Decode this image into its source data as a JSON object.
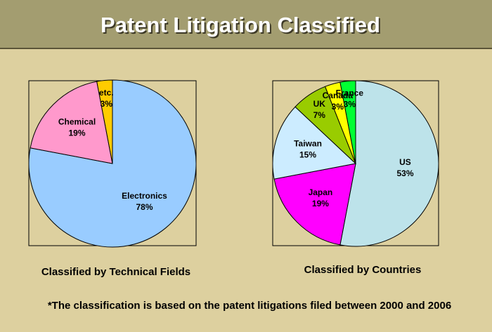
{
  "title": "Patent Litigation Classified",
  "chart_data": [
    {
      "type": "pie",
      "title": "Classified by Technical Fields",
      "categories": [
        "Electronics",
        "Chemical",
        "etc."
      ],
      "values": [
        78,
        19,
        3
      ],
      "value_labels": [
        "78%",
        "19%",
        "3%"
      ],
      "colors": [
        "#99ccff",
        "#ff99cc",
        "#ffcc00"
      ]
    },
    {
      "type": "pie",
      "title": "Classified by Countries",
      "categories": [
        "US",
        "Japan",
        "Taiwan",
        "UK",
        "Canada",
        "France"
      ],
      "values": [
        53,
        19,
        15,
        7,
        3,
        3
      ],
      "value_labels": [
        "53%",
        "19%",
        "15%",
        "7%",
        "3%",
        "3%"
      ],
      "colors": [
        "#bde3ea",
        "#ff00ff",
        "#ccecff",
        "#99cc00",
        "#ffff00",
        "#00ff33"
      ]
    }
  ],
  "footnote": "*The classification is based on the patent litigations filed between 2000 and 2006"
}
